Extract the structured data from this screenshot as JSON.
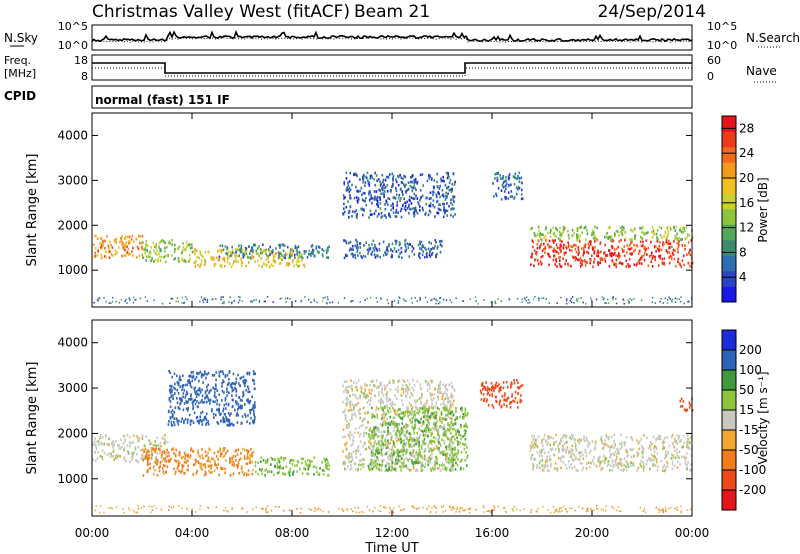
{
  "header": {
    "title": "Christmas Valley West (fitACF)",
    "beam": "Beam 21",
    "date": "24/Sep/2014"
  },
  "panels": {
    "nsky": {
      "label": "N.Sky",
      "ticks": [
        "10^5",
        "10^0"
      ],
      "right_ticks": [
        "10^5",
        "10^0"
      ],
      "right_label": "N.Search"
    },
    "freq": {
      "label_line1": "Freq.",
      "label_line2": "[MHz]",
      "ticks": [
        "18",
        "8"
      ],
      "right_ticks": [
        "60",
        "0"
      ],
      "right_label": "Nave"
    },
    "cpid": {
      "label": "CPID",
      "text": "normal (fast) 151 IF"
    }
  },
  "x_axis": {
    "label": "Time UT",
    "ticks": [
      "00:00",
      "04:00",
      "08:00",
      "12:00",
      "16:00",
      "20:00",
      "00:00"
    ]
  },
  "colors": {
    "power": [
      "#1818e8",
      "#2a45c2",
      "#2b6fb0",
      "#3a8c6c",
      "#52a85a",
      "#8cc53c",
      "#c7d22e",
      "#f0c020",
      "#f49a1c",
      "#f06a1c",
      "#ec3a1a",
      "#e8141c"
    ],
    "velocity": [
      "#1c2cd8",
      "#2e64b8",
      "#3f9a3e",
      "#8cc63f",
      "#c8c8c0",
      "#f0a830",
      "#f07c1c",
      "#ec4a1a",
      "#e8141c"
    ]
  },
  "chart_data": [
    {
      "type": "heatmap",
      "name": "power",
      "ylabel": "Slant Range [km]",
      "ylim": [
        180,
        4500
      ],
      "yticks": [
        1000,
        2000,
        3000,
        4000
      ],
      "xlim_hours": [
        0,
        24
      ],
      "colorbar": {
        "label": "Power [dB]",
        "ticks": [
          4,
          8,
          12,
          16,
          20,
          24,
          28
        ],
        "range": [
          0,
          30
        ]
      },
      "echo_bands": [
        {
          "t": [
            0.0,
            2.0
          ],
          "range": [
            1300,
            1800
          ],
          "value": 22
        },
        {
          "t": [
            2.0,
            4.0
          ],
          "range": [
            1200,
            1700
          ],
          "value": 14
        },
        {
          "t": [
            4.0,
            8.5
          ],
          "range": [
            1100,
            1500
          ],
          "value": 18
        },
        {
          "t": [
            5.0,
            9.5
          ],
          "range": [
            1300,
            1600
          ],
          "value": 8
        },
        {
          "t": [
            10.0,
            14.0
          ],
          "range": [
            1300,
            1700
          ],
          "value": 6
        },
        {
          "t": [
            10.0,
            14.5
          ],
          "range": [
            2200,
            3200
          ],
          "value": 5
        },
        {
          "t": [
            16.0,
            17.2
          ],
          "range": [
            2600,
            3200
          ],
          "value": 6
        },
        {
          "t": [
            17.5,
            24.0
          ],
          "range": [
            1100,
            1700
          ],
          "value": 27
        },
        {
          "t": [
            17.5,
            24.0
          ],
          "range": [
            1700,
            2000
          ],
          "value": 14
        }
      ]
    },
    {
      "type": "heatmap",
      "name": "velocity",
      "ylabel": "Slant Range [km]",
      "ylim": [
        180,
        4500
      ],
      "yticks": [
        1000,
        2000,
        3000,
        4000
      ],
      "xlim_hours": [
        0,
        24
      ],
      "colorbar": {
        "label": "Velocity [m s⁻¹]",
        "ticks": [
          200,
          100,
          50,
          15,
          -15,
          -50,
          -100,
          -200
        ],
        "range": [
          -250,
          250
        ]
      },
      "echo_bands": [
        {
          "t": [
            0.0,
            3.0
          ],
          "range": [
            1400,
            2000
          ],
          "value": 0
        },
        {
          "t": [
            2.0,
            6.5
          ],
          "range": [
            1100,
            1700
          ],
          "value": -60
        },
        {
          "t": [
            3.0,
            6.5
          ],
          "range": [
            2200,
            3400
          ],
          "value": 180
        },
        {
          "t": [
            6.5,
            9.5
          ],
          "range": [
            1100,
            1500
          ],
          "value": 40
        },
        {
          "t": [
            10.0,
            14.5
          ],
          "range": [
            1200,
            3200
          ],
          "value": 0
        },
        {
          "t": [
            11.0,
            15.0
          ],
          "range": [
            1200,
            2600
          ],
          "value": 40
        },
        {
          "t": [
            15.5,
            17.2
          ],
          "range": [
            2600,
            3200
          ],
          "value": -180
        },
        {
          "t": [
            17.5,
            24.0
          ],
          "range": [
            1200,
            2000
          ],
          "value": 0
        },
        {
          "t": [
            23.5,
            24.0
          ],
          "range": [
            2500,
            2800
          ],
          "value": -180
        }
      ]
    }
  ]
}
